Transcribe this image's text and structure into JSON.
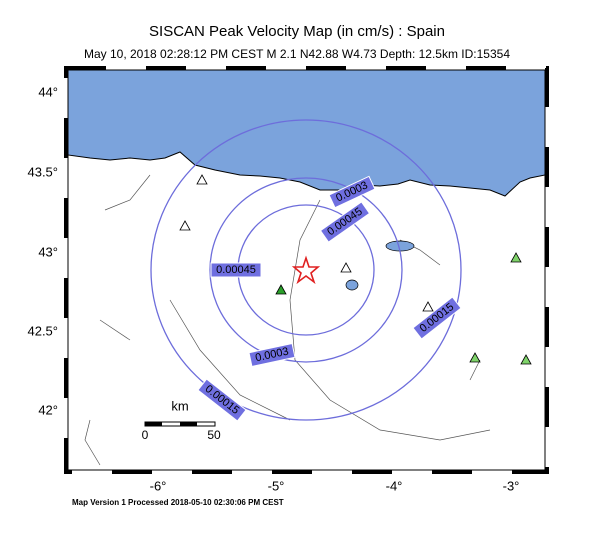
{
  "header": {
    "title": "SISCAN Peak Velocity Map (in cm/s) : Spain",
    "subtitle": "May 10, 2018 02:28:12 PM CEST   M 2.1   N42.88 W4.73   Depth: 12.5km   ID:15354"
  },
  "map": {
    "lat_ticks": [
      "44°",
      "43.5°",
      "43°",
      "42.5°",
      "42°"
    ],
    "lon_ticks": [
      "-6°",
      "-5°",
      "-4°",
      "-3°"
    ],
    "contour_labels": [
      "0.0003",
      "0.00045",
      "0.00045",
      "0.0003",
      "0.00015",
      "0.00015"
    ],
    "scale_bar": {
      "unit": "km",
      "start": "0",
      "end": "50"
    }
  },
  "footer": "Map Version 1 Processed 2018-05-10 02:30:06 PM CEST"
}
